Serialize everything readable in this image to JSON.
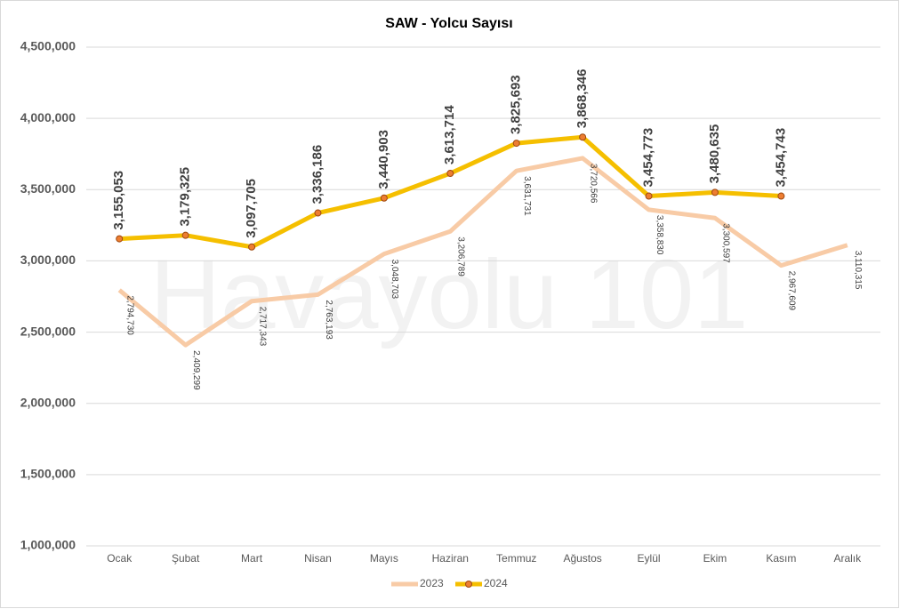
{
  "chart_data": {
    "type": "line",
    "title": "SAW - Yolcu Sayısı",
    "watermark": "Havayolu 101",
    "categories": [
      "Ocak",
      "Şubat",
      "Mart",
      "Nisan",
      "Mayıs",
      "Haziran",
      "Temmuz",
      "Ağustos",
      "Eylül",
      "Ekim",
      "Kasım",
      "Aralık"
    ],
    "series": [
      {
        "name": "2023",
        "color": "#f8cba6",
        "values": [
          2794730,
          2409299,
          2717343,
          2763193,
          3048703,
          3206789,
          3631731,
          3720566,
          3358830,
          3300597,
          2967609,
          3110315
        ],
        "value_labels": [
          "2,794,730",
          "2,409,299",
          "2,717,343",
          "2,763,193",
          "3,048,703",
          "3,206,789",
          "3,631,731",
          "3,720,566",
          "3,358,830",
          "3,300,597",
          "2,967,609",
          "3,110,315"
        ]
      },
      {
        "name": "2024",
        "color": "#f5bf00",
        "marker_color": "#ed7d31",
        "values": [
          3155053,
          3179325,
          3097705,
          3336186,
          3440903,
          3613714,
          3825693,
          3868346,
          3454773,
          3480635,
          3454743,
          null
        ],
        "value_labels": [
          "3,155,053",
          "3,179,325",
          "3,097,705",
          "3,336,186",
          "3,440,903",
          "3,613,714",
          "3,825,693",
          "3,868,346",
          "3,454,773",
          "3,480,635",
          "3,454,743",
          null
        ]
      }
    ],
    "ylim": [
      1000000,
      4500000
    ],
    "yticks": [
      {
        "value": 1000000,
        "label": "1,000,000"
      },
      {
        "value": 1500000,
        "label": "1,500,000"
      },
      {
        "value": 2000000,
        "label": "2,000,000"
      },
      {
        "value": 2500000,
        "label": "2,500,000"
      },
      {
        "value": 3000000,
        "label": "3,000,000"
      },
      {
        "value": 3500000,
        "label": "3,500,000"
      },
      {
        "value": 4000000,
        "label": "4,000,000"
      },
      {
        "value": 4500000,
        "label": "4,500,000"
      }
    ],
    "grid": true,
    "legend": "bottom"
  }
}
